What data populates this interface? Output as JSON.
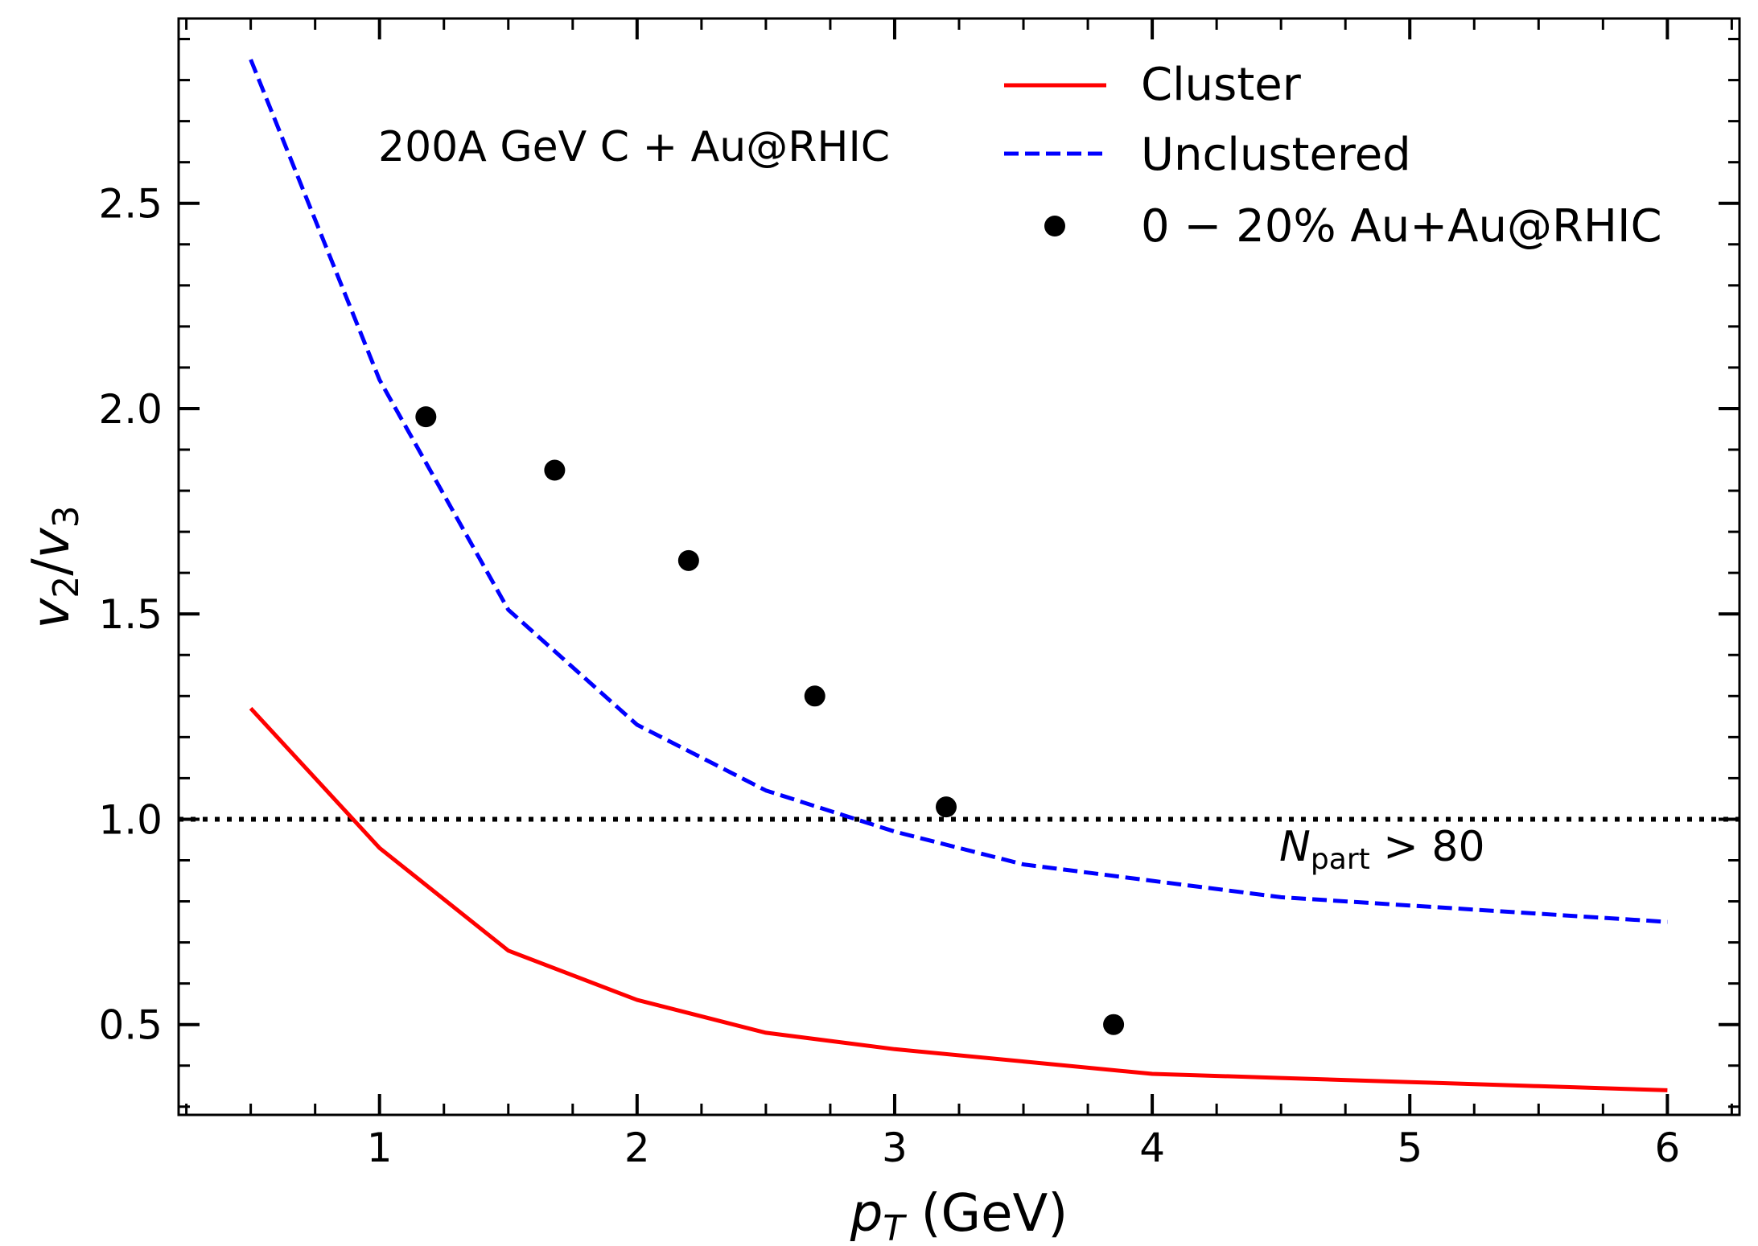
{
  "chart_data": {
    "type": "line",
    "title": "",
    "xlabel": "p_T (GeV)",
    "xlabel_parts": {
      "symbol": "p",
      "subscript": "T",
      "units": " (GeV)"
    },
    "ylabel": "v_2/v_3",
    "ylabel_parts": {
      "v1": "v",
      "sub1": "2",
      "slash": "/",
      "v2": "v",
      "sub2": "3"
    },
    "xlim": [
      0.22,
      6.28
    ],
    "ylim": [
      0.28,
      2.95
    ],
    "xticks": [
      1,
      2,
      3,
      4,
      5,
      6
    ],
    "xtick_labels": [
      "1",
      "2",
      "3",
      "4",
      "5",
      "6"
    ],
    "yticks": [
      0.5,
      1.0,
      1.5,
      2.0,
      2.5
    ],
    "ytick_labels": [
      "0.5",
      "1.0",
      "1.5",
      "2.0",
      "2.5"
    ],
    "grid": false,
    "legend_position": "top-right",
    "series": [
      {
        "name": "Cluster",
        "style": "solid",
        "color": "#ff0000",
        "x": [
          0.5,
          1.0,
          1.5,
          2.0,
          2.5,
          3.0,
          3.5,
          4.0,
          4.5,
          5.0,
          5.5,
          6.0
        ],
        "y": [
          1.27,
          0.93,
          0.68,
          0.56,
          0.48,
          0.44,
          0.41,
          0.38,
          0.37,
          0.36,
          0.35,
          0.34
        ]
      },
      {
        "name": "Unclustered",
        "style": "dashed",
        "color": "#0000ff",
        "x": [
          0.5,
          1.0,
          1.5,
          2.0,
          2.5,
          3.0,
          3.5,
          4.0,
          4.5,
          5.0,
          5.5,
          6.0
        ],
        "y": [
          2.85,
          2.07,
          1.51,
          1.23,
          1.07,
          0.97,
          0.89,
          0.85,
          0.81,
          0.79,
          0.77,
          0.75
        ]
      },
      {
        "name": "0 − 20% Au+Au@RHIC",
        "style": "markers",
        "color": "#000000",
        "x": [
          1.18,
          1.68,
          2.2,
          2.69,
          3.2,
          3.85
        ],
        "y": [
          1.98,
          1.85,
          1.63,
          1.3,
          1.03,
          0.5
        ]
      }
    ],
    "reference_line": {
      "y": 1.0,
      "style": "dotted",
      "color": "#000000"
    },
    "annotations": {
      "system": "200A GeV C + Au@RHIC",
      "npart": {
        "symbol": "N",
        "subscript": "part",
        "rest": " > 80"
      }
    }
  }
}
